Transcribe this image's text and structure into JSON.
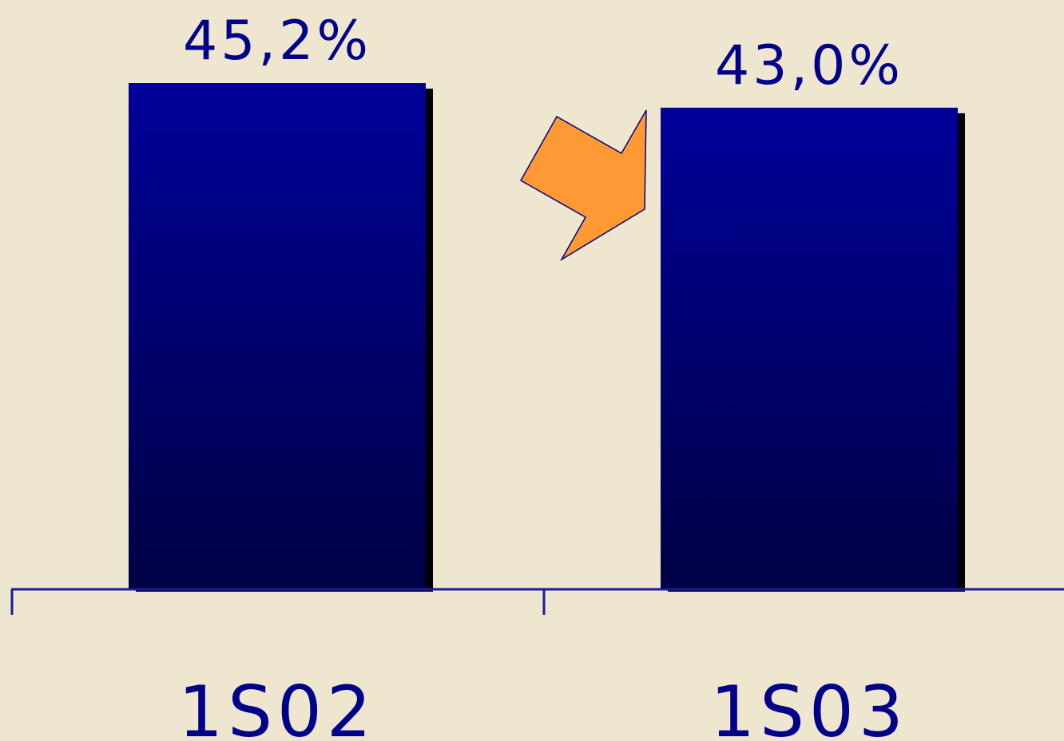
{
  "colors": {
    "background": "#efe6d0",
    "bar_top": "#000099",
    "bar_bottom": "#000044",
    "bar_shadow": "#000000",
    "text": "#00008b",
    "axis": "#1a1aa0",
    "arrow_fill": "#ff9933",
    "arrow_stroke": "#000080"
  },
  "decoration": {
    "trend_arrow_icon": "down-right-arrow-icon"
  },
  "chart_data": {
    "type": "bar",
    "categories": [
      "1S02",
      "1S03"
    ],
    "values": [
      45.2,
      43.0
    ],
    "value_labels": [
      "45,2%",
      "43,0%"
    ],
    "title": "",
    "xlabel": "",
    "ylabel": "",
    "ylim": [
      0,
      50
    ],
    "grid": false,
    "legend": "none"
  }
}
